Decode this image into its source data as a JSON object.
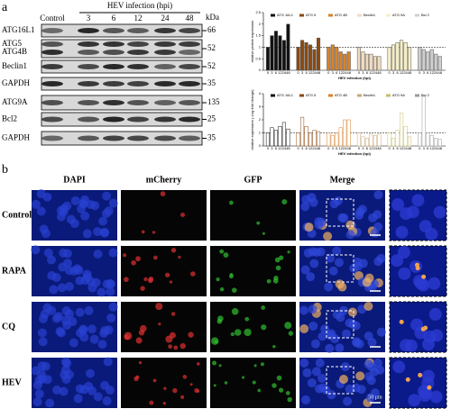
{
  "panel_a": {
    "letter": "a",
    "header": "HEV infection (hpi)",
    "unit": "kDa",
    "lanes": [
      "Control",
      "3",
      "6",
      "12",
      "24",
      "48"
    ],
    "rows": [
      {
        "label": "ATG16L1",
        "marker": "66"
      },
      {
        "label": "ATG5",
        "label2": "ATG4B",
        "marker": "52"
      },
      {
        "label": "Beclin1",
        "marker": "52"
      },
      {
        "label": "GAPDH",
        "marker": "35"
      },
      {
        "label": "ATG9A",
        "marker": "135"
      },
      {
        "label": "Bcl2",
        "marker": "25"
      },
      {
        "label": "GAPDH",
        "marker": "35"
      }
    ]
  },
  "chart_data": [
    {
      "type": "bar",
      "style": "filled",
      "ylabel": "relative protein expression",
      "xlabel": "HEV infection (hpi)",
      "categories": [
        "0",
        "3",
        "6",
        "12",
        "24",
        "48"
      ],
      "ylim": [
        0,
        2.5
      ],
      "yticks": [
        0,
        0.5,
        1,
        1.5,
        2,
        2.5
      ],
      "series": [
        {
          "name": "ATG 16L1",
          "color": "#111111",
          "values": [
            1,
            1.5,
            1.7,
            1.5,
            1.3,
            2.0
          ]
        },
        {
          "name": "ATG 5",
          "color": "#8a4a12",
          "values": [
            1,
            1.3,
            1.2,
            1.1,
            0.9,
            1.4
          ]
        },
        {
          "name": "ATG 4B",
          "color": "#d9822b",
          "values": [
            1,
            1.1,
            1.0,
            0.8,
            0.7,
            0.8
          ]
        },
        {
          "name": "Beclin1",
          "color": "#f0dcc0",
          "values": [
            1,
            0.8,
            0.7,
            0.7,
            0.6,
            0.6
          ]
        },
        {
          "name": "ATG 9A",
          "color": "#f5efc8",
          "values": [
            1,
            1.1,
            1.2,
            1.3,
            1.2,
            1.0
          ]
        },
        {
          "name": "Bcl 2",
          "color": "#cfcfcf",
          "values": [
            1,
            0.9,
            0.8,
            0.9,
            0.7,
            0.6
          ]
        }
      ]
    },
    {
      "type": "bar",
      "style": "outline",
      "ylabel": "relative expression (-Log fold change)",
      "xlabel": "HEV infection (hpi)",
      "categories": [
        "0",
        "3",
        "6",
        "12",
        "24",
        "48"
      ],
      "ylim": [
        0,
        4
      ],
      "yticks": [
        0,
        1,
        2,
        3,
        4
      ],
      "series": [
        {
          "name": "ATG 16L1",
          "color": "#111111",
          "values": [
            1,
            1.4,
            1.2,
            1.5,
            1.8,
            1.3
          ]
        },
        {
          "name": "ATG 5",
          "color": "#8a4a12",
          "values": [
            1,
            2.2,
            1.5,
            1.0,
            1.2,
            1.1
          ]
        },
        {
          "name": "ATG 4B",
          "color": "#d9822b",
          "values": [
            1,
            0.8,
            1.0,
            1.4,
            2.0,
            2.0
          ]
        },
        {
          "name": "Beclin1",
          "color": "#c8a878",
          "values": [
            1,
            0.7,
            0.6,
            0.9,
            0.8,
            0.9
          ]
        },
        {
          "name": "ATG 9A",
          "color": "#c9bd6a",
          "values": [
            1,
            0.6,
            1.2,
            2.5,
            1.5,
            0.7
          ]
        },
        {
          "name": "Bcl 2",
          "color": "#999999",
          "values": [
            1,
            3.8,
            1.0,
            0.8,
            0.6,
            0.5
          ]
        }
      ]
    }
  ],
  "panel_b": {
    "letter": "b",
    "columns": [
      "DAPI",
      "mCherry",
      "GFP",
      "Merge"
    ],
    "rows": [
      "Control",
      "RAPA",
      "CQ",
      "HEV"
    ],
    "scale": "50 μm"
  }
}
